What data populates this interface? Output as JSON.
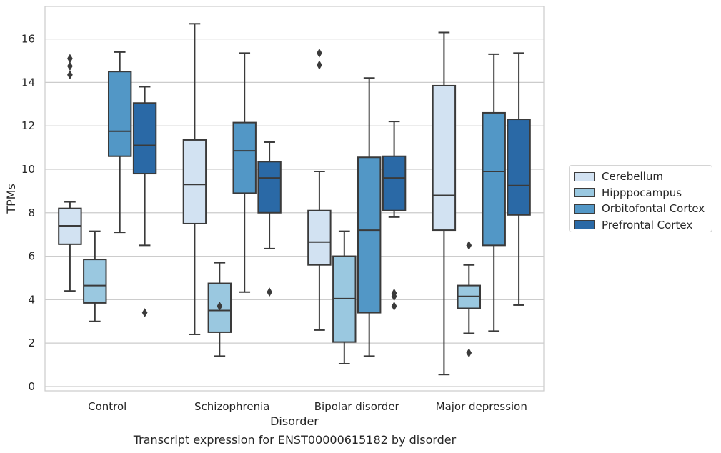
{
  "caption": "Transcript expression for ENST00000615182 by disorder",
  "chart_data": {
    "type": "box",
    "xlabel": "Disorder",
    "ylabel": "TPMs",
    "ylim": [
      -0.2,
      17.5
    ],
    "yticks": [
      0,
      2,
      4,
      6,
      8,
      10,
      12,
      14,
      16
    ],
    "grid": "horizontal",
    "legend_position": "right",
    "categories": [
      "Control",
      "Schizophrenia",
      "Bipolar disorder",
      "Major depression"
    ],
    "series": [
      {
        "name": "Cerebellum",
        "color": "#d2e2f2",
        "boxes": [
          {
            "whisker_low": 4.4,
            "q1": 6.55,
            "median": 7.4,
            "q3": 8.2,
            "whisker_high": 8.5,
            "outliers": [
              14.35,
              14.75,
              15.1
            ]
          },
          {
            "whisker_low": 2.4,
            "q1": 7.5,
            "median": 9.3,
            "q3": 11.35,
            "whisker_high": 16.7,
            "outliers": []
          },
          {
            "whisker_low": 2.6,
            "q1": 5.6,
            "median": 6.65,
            "q3": 8.1,
            "whisker_high": 9.9,
            "outliers": [
              14.8,
              15.35
            ]
          },
          {
            "whisker_low": 0.55,
            "q1": 7.2,
            "median": 8.8,
            "q3": 13.85,
            "whisker_high": 16.3,
            "outliers": []
          }
        ]
      },
      {
        "name": "Hipppocampus",
        "color": "#9ac8e0",
        "boxes": [
          {
            "whisker_low": 3.0,
            "q1": 3.85,
            "median": 4.65,
            "q3": 5.85,
            "whisker_high": 7.15,
            "outliers": []
          },
          {
            "whisker_low": 1.4,
            "q1": 2.5,
            "median": 3.5,
            "q3": 4.75,
            "whisker_high": 5.7,
            "outliers": [
              3.7
            ]
          },
          {
            "whisker_low": 1.05,
            "q1": 2.05,
            "median": 4.05,
            "q3": 6.0,
            "whisker_high": 7.15,
            "outliers": []
          },
          {
            "whisker_low": 2.45,
            "q1": 3.6,
            "median": 4.15,
            "q3": 4.65,
            "whisker_high": 5.6,
            "outliers": [
              6.5,
              1.55
            ]
          }
        ]
      },
      {
        "name": "Orbitofontal Cortex",
        "color": "#5297c6",
        "boxes": [
          {
            "whisker_low": 7.1,
            "q1": 10.6,
            "median": 11.75,
            "q3": 14.5,
            "whisker_high": 15.4,
            "outliers": []
          },
          {
            "whisker_low": 4.35,
            "q1": 8.9,
            "median": 10.85,
            "q3": 12.15,
            "whisker_high": 15.35,
            "outliers": []
          },
          {
            "whisker_low": 1.4,
            "q1": 3.4,
            "median": 7.2,
            "q3": 10.55,
            "whisker_high": 14.2,
            "outliers": []
          },
          {
            "whisker_low": 2.55,
            "q1": 6.5,
            "median": 9.9,
            "q3": 12.6,
            "whisker_high": 15.3,
            "outliers": []
          }
        ]
      },
      {
        "name": "Prefrontal Cortex",
        "color": "#2a69a6",
        "boxes": [
          {
            "whisker_low": 6.5,
            "q1": 9.8,
            "median": 11.1,
            "q3": 13.05,
            "whisker_high": 13.8,
            "outliers": [
              3.4
            ]
          },
          {
            "whisker_low": 6.35,
            "q1": 8.0,
            "median": 9.6,
            "q3": 10.35,
            "whisker_high": 11.25,
            "outliers": [
              4.35
            ]
          },
          {
            "whisker_low": 7.8,
            "q1": 8.1,
            "median": 9.6,
            "q3": 10.6,
            "whisker_high": 12.2,
            "outliers": [
              3.7,
              4.15,
              4.3
            ]
          },
          {
            "whisker_low": 3.75,
            "q1": 7.9,
            "median": 9.25,
            "q3": 12.3,
            "whisker_high": 15.35,
            "outliers": []
          }
        ]
      }
    ]
  }
}
